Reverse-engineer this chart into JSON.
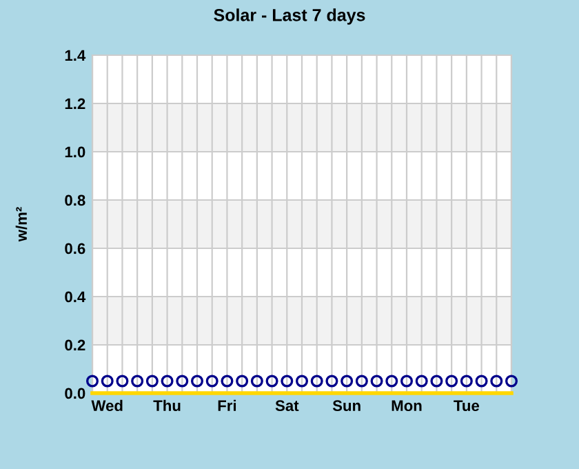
{
  "chart_data": {
    "type": "line",
    "title": "Solar - Last 7 days",
    "ylabel": "w/m²",
    "categories": [
      null,
      "Wed",
      null,
      null,
      null,
      "Thu",
      null,
      null,
      null,
      "Fri",
      null,
      null,
      null,
      "Sat",
      null,
      null,
      null,
      "Sun",
      null,
      null,
      null,
      "Mon",
      null,
      null,
      null,
      "Tue",
      null,
      null,
      null
    ],
    "series": [
      {
        "color": "#ffd700",
        "marker": "none",
        "values": [
          0,
          0,
          0,
          0,
          0,
          0,
          0,
          0,
          0,
          0,
          0,
          0,
          0,
          0,
          0,
          0,
          0,
          0,
          0,
          0,
          0,
          0,
          0,
          0,
          0,
          0,
          0,
          0,
          0
        ]
      },
      {
        "type": "scatter",
        "color": "#00008b",
        "marker": "circle",
        "values": [
          0.05,
          0.05,
          0.05,
          0.05,
          0.05,
          0.05,
          0.05,
          0.05,
          0.05,
          0.05,
          0.05,
          0.05,
          0.05,
          0.05,
          0.05,
          0.05,
          0.05,
          0.05,
          0.05,
          0.05,
          0.05,
          0.05,
          0.05,
          0.05,
          0.05,
          0.05,
          0.05,
          0.05,
          0.05
        ]
      }
    ],
    "ylim": [
      0,
      1.4
    ],
    "yticks": [
      {
        "value": 0,
        "label": "0.0"
      },
      {
        "value": 0.2,
        "label": "0.2"
      },
      {
        "value": 0.4,
        "label": "0.4"
      },
      {
        "value": 0.6,
        "label": "0.6"
      },
      {
        "value": 0.8,
        "label": "0.8"
      },
      {
        "value": 1.0,
        "label": "1.0"
      },
      {
        "value": 1.2,
        "label": "1.2"
      },
      {
        "value": 1.4,
        "label": "1.4"
      }
    ],
    "bands": [
      {
        "axis": "y",
        "from": 0.2,
        "to": 0.4,
        "color": "#f2f2f2"
      },
      {
        "axis": "y",
        "from": 0.6,
        "to": 0.8,
        "color": "#f2f2f2"
      },
      {
        "axis": "y",
        "from": 1.0,
        "to": 1.2,
        "color": "#f2f2f2"
      }
    ],
    "grid": true
  }
}
